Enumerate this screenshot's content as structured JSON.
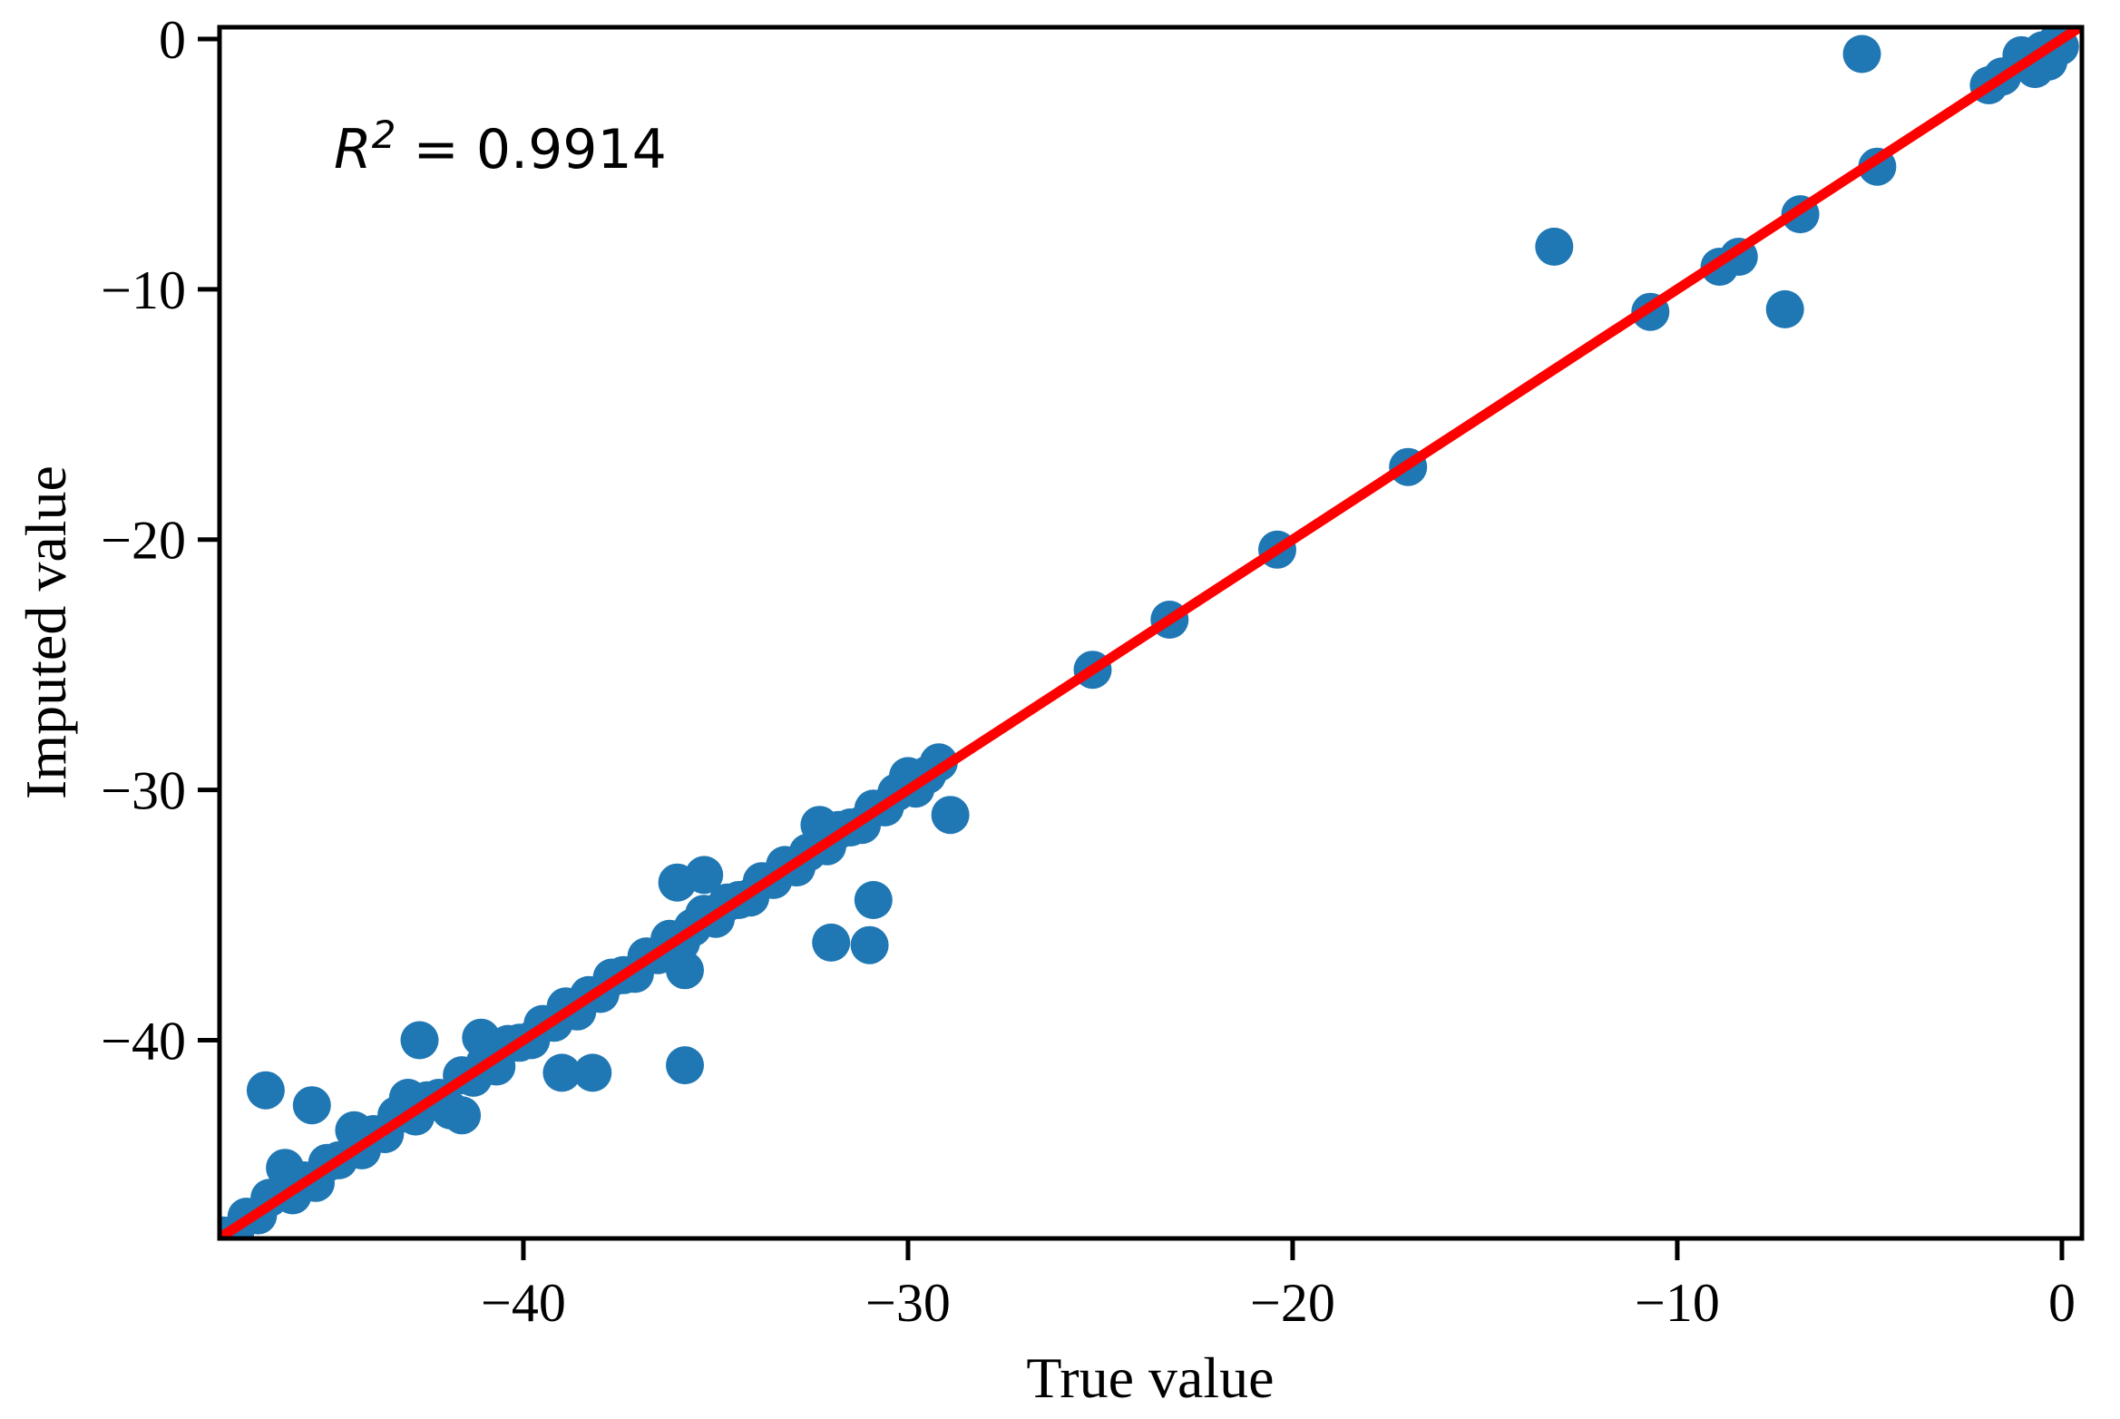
{
  "figure": {
    "background": "#ffffff"
  },
  "annotation": {
    "base": "R",
    "sup": "2",
    "rest": " = 0.9914",
    "text": "R² = 0.9914"
  },
  "axes": {
    "x": {
      "label": "True value",
      "ticks": [
        -40,
        -30,
        -20,
        -10,
        0
      ],
      "tick_labels": [
        "−40",
        "−30",
        "−20",
        "−10",
        "0"
      ],
      "range": [
        -47.9,
        0.52
      ]
    },
    "y": {
      "label": "Imputed value",
      "ticks": [
        0,
        -10,
        -20,
        -30,
        -40
      ],
      "tick_labels": [
        "0",
        "−10",
        "−20",
        "−30",
        "−40"
      ],
      "range": [
        -47.92,
        0.47
      ]
    }
  },
  "chart_data": {
    "type": "scatter",
    "title": "",
    "xlabel": "True value",
    "ylabel": "Imputed value",
    "xlim": [
      -47.9,
      0.52
    ],
    "ylim": [
      -47.92,
      0.47
    ],
    "grid": false,
    "legend": "none",
    "r_squared": 0.9914,
    "marker_color": "#1f77b4",
    "marker_radius_px": 21,
    "line_color": "#ff0000",
    "axis_color": "#000000",
    "identity_line": {
      "x": [
        -47.9,
        0.5
      ],
      "y": [
        -47.9,
        0.5
      ]
    },
    "points": [
      [
        -47.8,
        -47.8
      ],
      [
        -47.5,
        -47.75
      ],
      [
        -47.2,
        -47.05
      ],
      [
        -46.9,
        -47.0
      ],
      [
        -46.6,
        -46.3
      ],
      [
        -46.2,
        -45.1
      ],
      [
        -46.0,
        -46.2
      ],
      [
        -45.7,
        -45.6
      ],
      [
        -45.4,
        -45.7
      ],
      [
        -45.1,
        -44.9
      ],
      [
        -44.8,
        -44.8
      ],
      [
        -44.4,
        -43.6
      ],
      [
        -44.2,
        -44.4
      ],
      [
        -43.9,
        -43.75
      ],
      [
        -43.6,
        -43.75
      ],
      [
        -43.3,
        -43.0
      ],
      [
        -43.0,
        -42.3
      ],
      [
        -42.8,
        -43.05
      ],
      [
        -42.5,
        -42.4
      ],
      [
        -42.2,
        -42.3
      ],
      [
        -41.9,
        -42.8
      ],
      [
        -41.6,
        -41.4
      ],
      [
        -41.3,
        -41.5
      ],
      [
        -41.0,
        -40.9
      ],
      [
        -40.7,
        -41.05
      ],
      [
        -40.4,
        -40.15
      ],
      [
        -40.1,
        -40.1
      ],
      [
        -39.8,
        -40.0
      ],
      [
        -39.5,
        -39.35
      ],
      [
        -39.2,
        -39.3
      ],
      [
        -38.9,
        -38.65
      ],
      [
        -38.6,
        -38.85
      ],
      [
        -38.3,
        -38.2
      ],
      [
        -38.0,
        -38.15
      ],
      [
        -37.7,
        -37.5
      ],
      [
        -37.4,
        -37.4
      ],
      [
        -37.1,
        -37.35
      ],
      [
        -36.8,
        -36.65
      ],
      [
        -36.5,
        -36.6
      ],
      [
        -36.2,
        -35.95
      ],
      [
        -35.9,
        -36.1
      ],
      [
        -35.6,
        -35.5
      ],
      [
        -35.3,
        -34.95
      ],
      [
        -35.0,
        -35.15
      ],
      [
        -34.7,
        -34.5
      ],
      [
        -34.4,
        -34.4
      ],
      [
        -34.1,
        -34.3
      ],
      [
        -33.8,
        -33.65
      ],
      [
        -33.5,
        -33.6
      ],
      [
        -33.2,
        -33.0
      ],
      [
        -32.9,
        -33.1
      ],
      [
        -32.6,
        -32.5
      ],
      [
        -32.3,
        -31.4
      ],
      [
        -32.1,
        -32.25
      ],
      [
        -31.8,
        -31.6
      ],
      [
        -31.5,
        -31.5
      ],
      [
        -31.2,
        -31.4
      ],
      [
        -30.9,
        -30.75
      ],
      [
        -30.6,
        -30.7
      ],
      [
        -30.3,
        -30.1
      ],
      [
        -30.0,
        -29.45
      ],
      [
        -29.8,
        -29.95
      ],
      [
        -29.5,
        -29.4
      ],
      [
        -29.2,
        -28.9
      ],
      [
        -46.7,
        -42.0
      ],
      [
        -45.5,
        -42.6
      ],
      [
        -42.7,
        -40.0
      ],
      [
        -41.1,
        -39.9
      ],
      [
        -41.6,
        -43.0
      ],
      [
        -39.0,
        -41.3
      ],
      [
        -38.2,
        -41.3
      ],
      [
        -35.8,
        -41.0
      ],
      [
        -36.0,
        -33.7
      ],
      [
        -35.3,
        -33.4
      ],
      [
        -35.8,
        -37.2
      ],
      [
        -32.0,
        -36.1
      ],
      [
        -31.0,
        -36.2
      ],
      [
        -30.9,
        -34.4
      ],
      [
        -28.9,
        -31.0
      ],
      [
        -25.2,
        -25.2
      ],
      [
        -23.2,
        -23.2
      ],
      [
        -20.4,
        -20.4
      ],
      [
        -17.0,
        -17.1
      ],
      [
        -13.2,
        -8.3
      ],
      [
        -10.7,
        -10.9
      ],
      [
        -8.9,
        -9.1
      ],
      [
        -8.4,
        -8.7
      ],
      [
        -7.2,
        -10.8
      ],
      [
        -6.8,
        -7.0
      ],
      [
        -5.2,
        -0.6
      ],
      [
        -4.8,
        -5.1
      ],
      [
        -1.9,
        -1.85
      ],
      [
        -1.55,
        -1.5
      ],
      [
        -1.05,
        -0.65
      ],
      [
        -0.7,
        -1.2
      ],
      [
        -0.35,
        -0.9
      ],
      [
        -0.5,
        -0.45
      ],
      [
        -0.15,
        -0.15
      ],
      [
        -0.05,
        -0.3
      ]
    ]
  }
}
